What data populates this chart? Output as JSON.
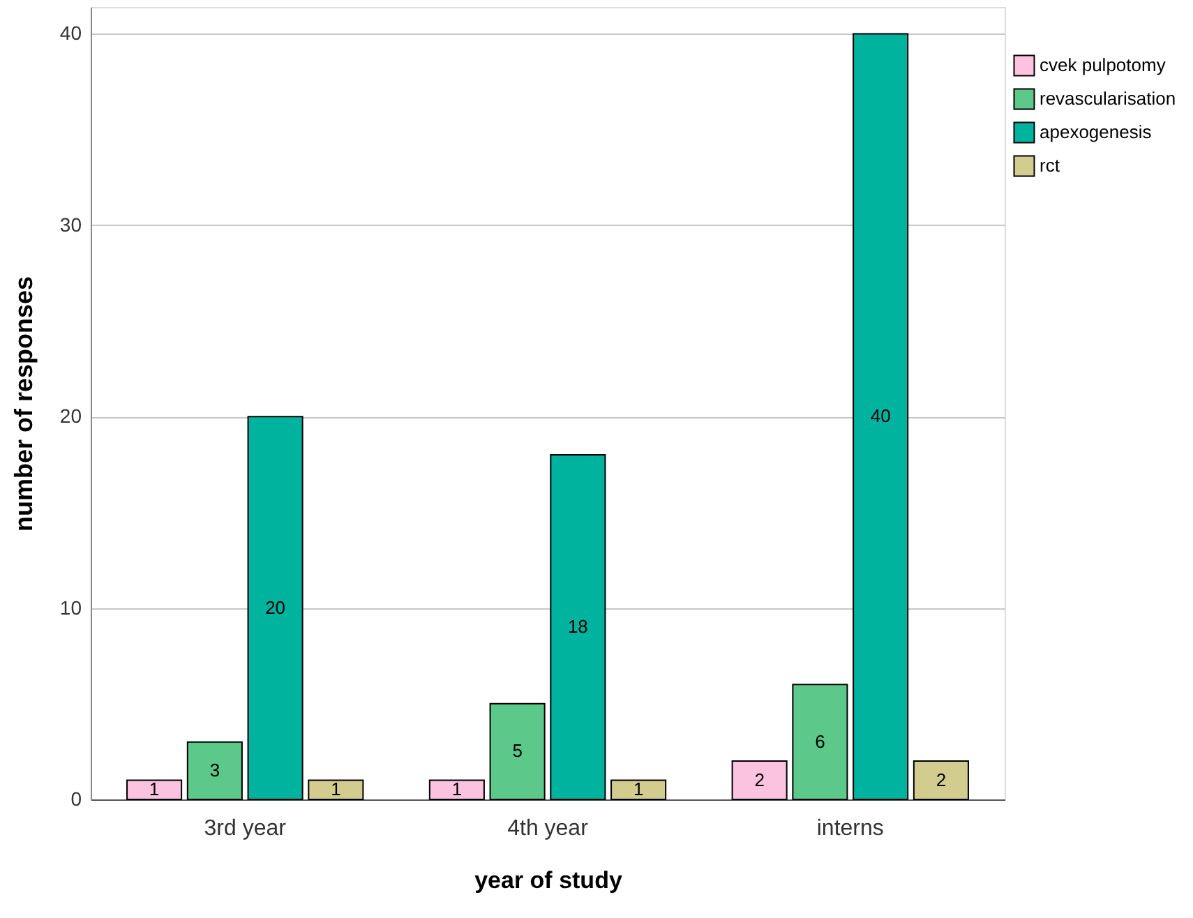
{
  "chart_data": {
    "type": "bar",
    "xlabel": "year of study",
    "ylabel": "number of responses",
    "categories": [
      "3rd year",
      "4th year",
      "interns"
    ],
    "series": [
      {
        "name": "cvek pulpotomy",
        "color": "#fcc3e0",
        "values": [
          1,
          1,
          2
        ]
      },
      {
        "name": "revascularisation",
        "color": "#5cc98b",
        "values": [
          3,
          5,
          6
        ]
      },
      {
        "name": "apexogenesis",
        "color": "#00b39e",
        "values": [
          20,
          18,
          40
        ]
      },
      {
        "name": "rct",
        "color": "#d3cc8f",
        "values": [
          1,
          1,
          2
        ]
      }
    ],
    "ylim": [
      0,
      41.4
    ],
    "yticks": [
      0,
      10,
      20,
      30,
      40
    ],
    "grid": "y",
    "legend": "top right",
    "data_labels": true
  }
}
